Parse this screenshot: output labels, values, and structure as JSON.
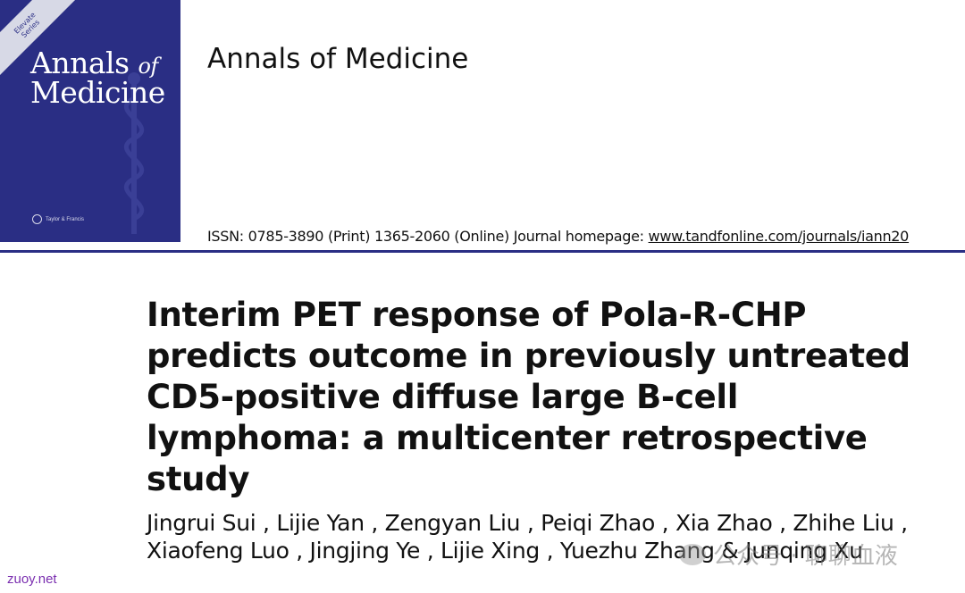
{
  "cover": {
    "banner_line1": "Elevate",
    "banner_line2": "Series",
    "title_line1": "Annals",
    "title_of": "of",
    "title_line2": "Medicine",
    "publisher": "Taylor & Francis"
  },
  "header": {
    "journal_name": "Annals of Medicine",
    "issn_text": "ISSN: 0785-3890 (Print) 1365-2060 (Online) Journal homepage: ",
    "homepage_link": "www.tandfonline.com/journals/iann20"
  },
  "article": {
    "title": "Interim PET response of Pola-R-CHP predicts outcome in previously untreated CD5-positive diffuse large B-cell lymphoma: a multicenter retrospective study",
    "authors": "Jingrui Sui , Lijie Yan , Zengyan Liu , Peiqi Zhao , Xia Zhao , Zhihe Liu , Xiaofeng Luo , Jingjing Ye , Lijie Xing , Yuezhu Zhang & Junqing Xu"
  },
  "overlay": {
    "watermark": "公众号 · 聊聊血液",
    "site_mark": "zuoy.net"
  },
  "colors": {
    "cover_blue": "#2a2e84",
    "site_mark": "#7b2fb0"
  }
}
